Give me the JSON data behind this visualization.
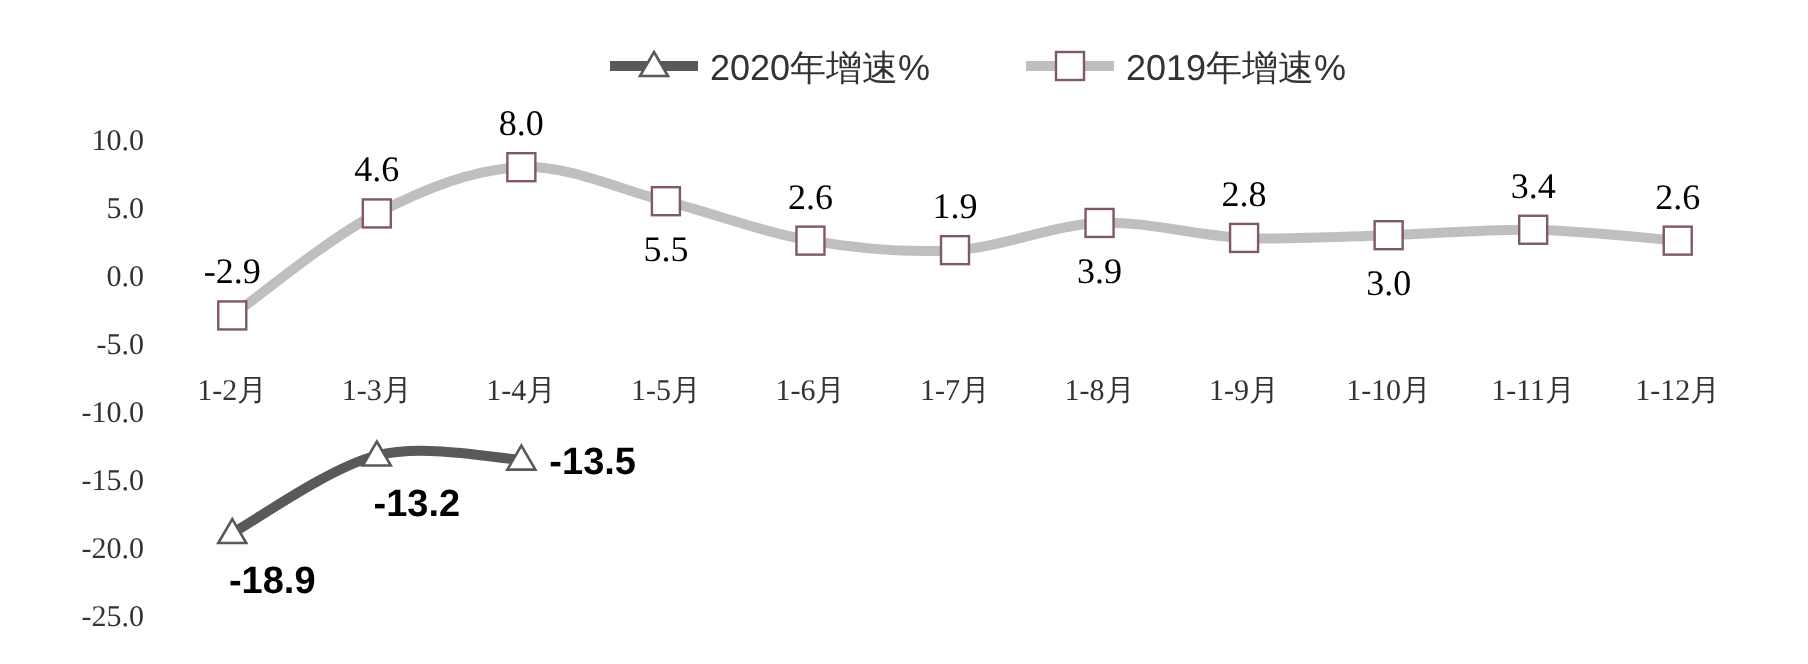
{
  "chart_data": {
    "type": "line",
    "categories": [
      "1-2月",
      "1-3月",
      "1-4月",
      "1-5月",
      "1-6月",
      "1-7月",
      "1-8月",
      "1-9月",
      "1-10月",
      "1-11月",
      "1-12月"
    ],
    "series": [
      {
        "name": "2020年增速%",
        "color": "#595959",
        "marker": "triangle",
        "values": [
          -18.9,
          -13.2,
          -13.5,
          null,
          null,
          null,
          null,
          null,
          null,
          null,
          null
        ],
        "value_labels": [
          "-18.9",
          "-13.2",
          "-13.5",
          null,
          null,
          null,
          null,
          null,
          null,
          null,
          null
        ]
      },
      {
        "name": "2019年增速%",
        "color": "#bfbfbf",
        "marker": "square",
        "values": [
          -2.9,
          4.6,
          8.0,
          5.5,
          2.6,
          1.9,
          3.9,
          2.8,
          3.0,
          3.4,
          2.6
        ],
        "value_labels": [
          "-2.9",
          "4.6",
          "8.0",
          "5.5",
          "2.6",
          "1.9",
          "3.9",
          "2.8",
          "3.0",
          "3.4",
          "2.6"
        ]
      }
    ],
    "ylim": [
      -25,
      10
    ],
    "yticks": [
      {
        "value": 10,
        "label": "10.0"
      },
      {
        "value": 5,
        "label": "5.0"
      },
      {
        "value": 0,
        "label": "0.0"
      },
      {
        "value": -5,
        "label": "-5.0"
      },
      {
        "value": -10,
        "label": "-10.0"
      },
      {
        "value": -15,
        "label": "-15.0"
      },
      {
        "value": -20,
        "label": "-20.0"
      },
      {
        "value": -25,
        "label": "-25.0"
      }
    ],
    "legend": "top",
    "grid": false
  }
}
